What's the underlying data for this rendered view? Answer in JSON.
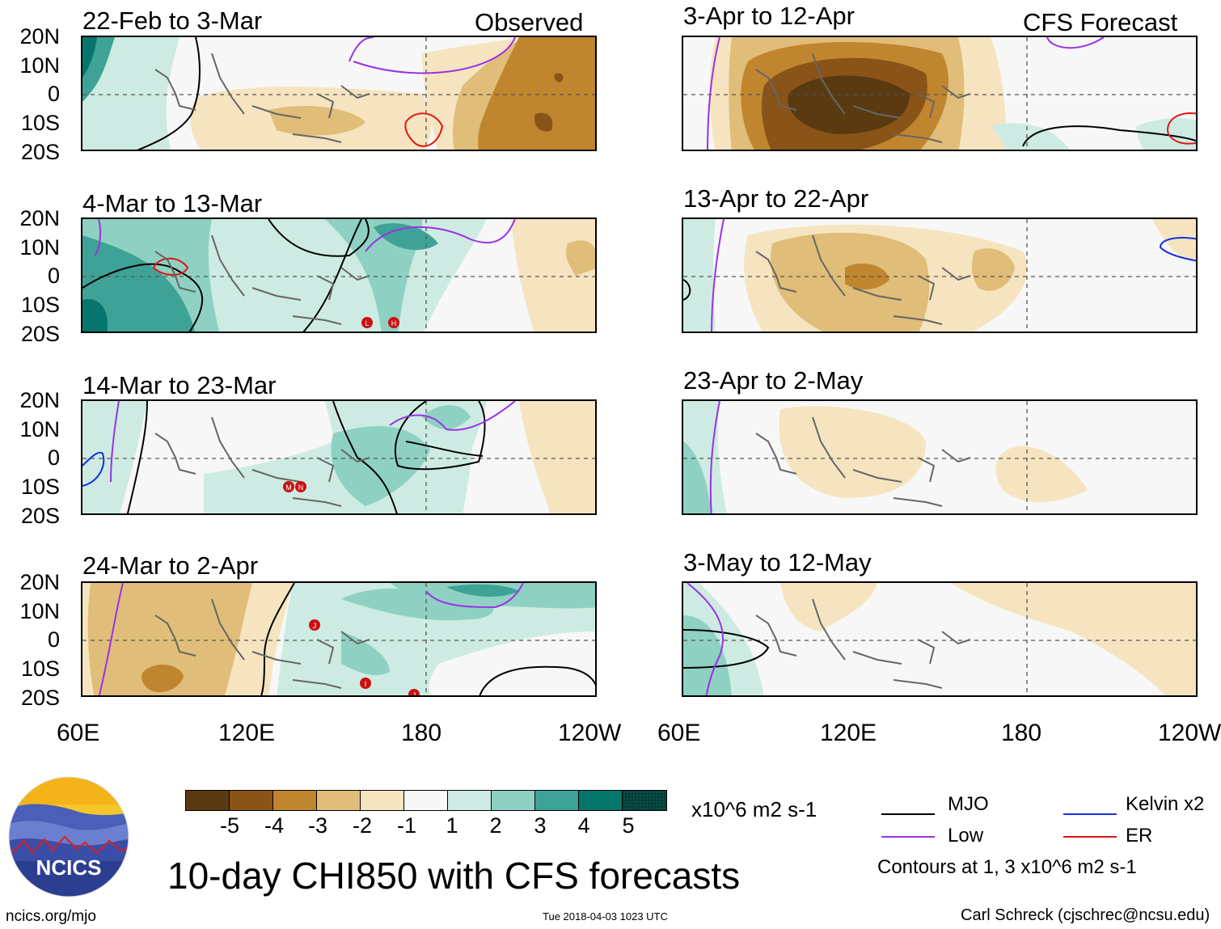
{
  "title": "10-day CHI850 with CFS forecasts",
  "lat_labels": [
    "20N",
    "10N",
    "0",
    "10S",
    "20S"
  ],
  "lon_labels": [
    "60E",
    "120E",
    "180",
    "120W"
  ],
  "observed_label": "Observed",
  "forecast_label": "CFS Forecast",
  "panels_left": [
    {
      "title": "22-Feb to 3-Mar"
    },
    {
      "title": "4-Mar to 13-Mar"
    },
    {
      "title": "14-Mar to 23-Mar"
    },
    {
      "title": "24-Mar to 2-Apr"
    }
  ],
  "panels_right": [
    {
      "title": "3-Apr to 12-Apr"
    },
    {
      "title": "13-Apr to 22-Apr"
    },
    {
      "title": "23-Apr to 2-May"
    },
    {
      "title": "3-May to 12-May"
    }
  ],
  "colorbar": {
    "colors": [
      "#5a3a10",
      "#8a5317",
      "#c0852f",
      "#e0bd78",
      "#f5e4bf",
      "#f7f7f7",
      "#cdebe2",
      "#8ed1c2",
      "#3fa297",
      "#06766c",
      "#073f3a"
    ],
    "ticks": [
      "-5",
      "-4",
      "-3",
      "-2",
      "-1",
      "1",
      "2",
      "3",
      "4",
      "5"
    ],
    "units": "x10^6 m2 s-1"
  },
  "legend": {
    "mjo": {
      "label": "MJO",
      "color": "#000000"
    },
    "low": {
      "label": "Low",
      "color": "#9a32e6"
    },
    "kelvin": {
      "label": "Kelvin x2",
      "color": "#1530e0"
    },
    "er": {
      "label": "ER",
      "color": "#e01515"
    },
    "contour_note": "Contours at 1, 3 x10^6 m2 s-1"
  },
  "logo": {
    "text": "NCICS"
  },
  "footer": {
    "website": "ncics.org/mjo",
    "timestamp": "Tue 2018-04-03 1023 UTC",
    "credit": "Carl Schreck (cjschrec@ncsu.edu)"
  },
  "storm_markers": [
    {
      "panel": 1,
      "letter": "L"
    },
    {
      "panel": 1,
      "letter": "H"
    },
    {
      "panel": 2,
      "letter": "M"
    },
    {
      "panel": 2,
      "letter": "N"
    },
    {
      "panel": 3,
      "letter": "J"
    },
    {
      "panel": 3,
      "letter": "I"
    },
    {
      "panel": 3,
      "letter": "J"
    }
  ]
}
